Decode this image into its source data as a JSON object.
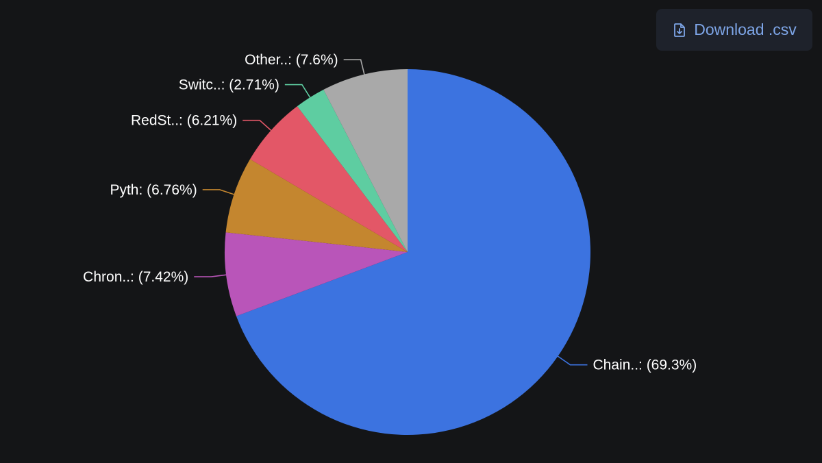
{
  "toolbar": {
    "download_label": "Download .csv",
    "download_icon": "file-download-icon"
  },
  "chart_data": {
    "type": "pie",
    "title": "",
    "slices": [
      {
        "label": "Chain..",
        "value": 69.3,
        "display": "Chain..: (69.3%)",
        "color": "#3c73e0"
      },
      {
        "label": "Chron..",
        "value": 7.42,
        "display": "Chron..: (7.42%)",
        "color": "#b955b9"
      },
      {
        "label": "Pyth",
        "value": 6.76,
        "display": "Pyth: (6.76%)",
        "color": "#c4862f"
      },
      {
        "label": "RedSt..",
        "value": 6.21,
        "display": "RedSt..: (6.21%)",
        "color": "#e35767"
      },
      {
        "label": "Switc..",
        "value": 2.71,
        "display": "Switc..: (2.71%)",
        "color": "#5ecda1"
      },
      {
        "label": "Other..",
        "value": 7.6,
        "display": "Other..: (7.6%)",
        "color": "#a9a9a9"
      }
    ],
    "start_angle_deg": 0,
    "direction": "clockwise"
  }
}
